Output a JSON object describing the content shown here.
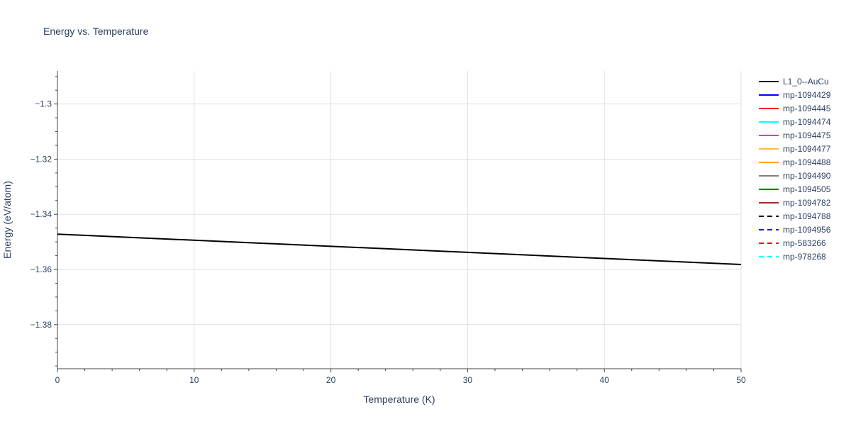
{
  "chart_data": {
    "type": "line",
    "title": "Energy vs. Temperature",
    "xlabel": "Temperature (K)",
    "ylabel": "Energy (eV/atom)",
    "xlim": [
      0,
      50
    ],
    "ylim": [
      -1.396,
      -1.288
    ],
    "x_ticks": [
      0,
      10,
      20,
      30,
      40,
      50
    ],
    "x_tick_labels": [
      "0",
      "10",
      "20",
      "30",
      "40",
      "50"
    ],
    "y_ticks": [
      -1.38,
      -1.36,
      -1.34,
      -1.32,
      -1.3
    ],
    "y_tick_labels": [
      "−1.38",
      "−1.36",
      "−1.34",
      "−1.32",
      "−1.3"
    ],
    "grid": true,
    "legend_position": "right",
    "series": [
      {
        "name": "L1_0--AuCu",
        "color": "#000000",
        "dash": "solid",
        "x": [
          0,
          10,
          20,
          30,
          40,
          50
        ],
        "y": [
          -1.3472,
          -1.3494,
          -1.3516,
          -1.3538,
          -1.356,
          -1.3582
        ]
      },
      {
        "name": "mp-1094429",
        "color": "#0000ff",
        "dash": "solid",
        "x": [],
        "y": []
      },
      {
        "name": "mp-1094445",
        "color": "#ff0000",
        "dash": "solid",
        "x": [],
        "y": []
      },
      {
        "name": "mp-1094474",
        "color": "#00ffff",
        "dash": "solid",
        "x": [],
        "y": []
      },
      {
        "name": "mp-1094475",
        "color": "#ff00ff",
        "dash": "solid",
        "x": [],
        "y": []
      },
      {
        "name": "mp-1094477",
        "color": "#fbc02d",
        "dash": "solid",
        "x": [],
        "y": []
      },
      {
        "name": "mp-1094488",
        "color": "#ffa500",
        "dash": "solid",
        "x": [],
        "y": []
      },
      {
        "name": "mp-1094490",
        "color": "#808080",
        "dash": "solid",
        "x": [],
        "y": []
      },
      {
        "name": "mp-1094505",
        "color": "#008000",
        "dash": "solid",
        "x": [],
        "y": []
      },
      {
        "name": "mp-1094782",
        "color": "#a52a2a",
        "dash": "solid",
        "x": [],
        "y": []
      },
      {
        "name": "mp-1094788",
        "color": "#000000",
        "dash": "dash",
        "x": [],
        "y": []
      },
      {
        "name": "mp-1094956",
        "color": "#0000ff",
        "dash": "dash",
        "x": [],
        "y": []
      },
      {
        "name": "mp-583266",
        "color": "#ff0000",
        "dash": "dash",
        "x": [],
        "y": []
      },
      {
        "name": "mp-978268",
        "color": "#00ffff",
        "dash": "dash",
        "x": [],
        "y": []
      }
    ]
  }
}
